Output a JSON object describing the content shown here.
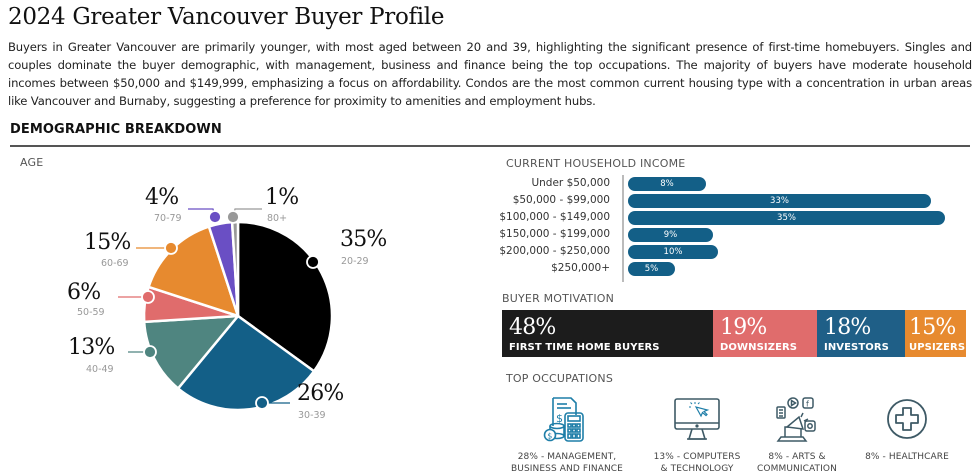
{
  "header": {
    "title": "2024 Greater Vancouver Buyer Profile",
    "intro": "Buyers in Greater Vancouver are primarily younger, with most aged between 20 and 39, highlighting the significant presence of first-time homebuyers. Singles and couples dominate the buyer demographic, with management, business and finance being the top occupations. The majority of buyers have moderate household incomes between $50,000 and $149,999, emphasizing a focus on affordability. Condos are the most common current housing type with a concentration in urban areas like Vancouver and Burnaby, suggesting a preference for proximity to amenities and employment hubs."
  },
  "section": {
    "heading": "DEMOGRAPHIC BREAKDOWN"
  },
  "age": {
    "label": "AGE",
    "slices": [
      {
        "pct": "35%",
        "range": "20-29",
        "color": "#000000"
      },
      {
        "pct": "26%",
        "range": "30-39",
        "color": "#135f87"
      },
      {
        "pct": "13%",
        "range": "40-49",
        "color": "#4f8580"
      },
      {
        "pct": "6%",
        "range": "50-59",
        "color": "#e06c6c"
      },
      {
        "pct": "15%",
        "range": "60-69",
        "color": "#e78a2f"
      },
      {
        "pct": "4%",
        "range": "70-79",
        "color": "#6a4fc4"
      },
      {
        "pct": "1%",
        "range": "80+",
        "color": "#999999"
      }
    ]
  },
  "income": {
    "label": "CURRENT HOUSEHOLD INCOME",
    "rows": [
      {
        "label": "Under $50,000",
        "value": "8%"
      },
      {
        "label": "$50,000 - $99,000",
        "value": "33%"
      },
      {
        "label": "$100,000 - $149,000",
        "value": "35%"
      },
      {
        "label": "$150,000 - $199,000",
        "value": "9%"
      },
      {
        "label": "$200,000 - $250,000",
        "value": "10%"
      },
      {
        "label": "$250,000+",
        "value": "5%"
      }
    ],
    "bar_color": "#135f87"
  },
  "motivation": {
    "label": "BUYER MOTIVATION",
    "segments": [
      {
        "pct": "48%",
        "label": "FIRST TIME HOME BUYERS",
        "color": "#1c1c1c"
      },
      {
        "pct": "19%",
        "label": "DOWNSIZERS",
        "color": "#e06c6c"
      },
      {
        "pct": "18%",
        "label": "INVESTORS",
        "color": "#1f5f87"
      },
      {
        "pct": "15%",
        "label": "UPSIZERS",
        "color": "#e78a2f"
      }
    ]
  },
  "occupations": {
    "label": "TOP OCCUPATIONS",
    "items": [
      {
        "line1": "28% - MANAGEMENT,",
        "line2": "BUSINESS AND FINANCE",
        "icon": "calculator-finance-icon"
      },
      {
        "line1": "13% - COMPUTERS",
        "line2": "& TECHNOLOGY",
        "icon": "computer-monitor-icon"
      },
      {
        "line1": "8% - ARTS &",
        "line2": "COMMUNICATION",
        "icon": "megaphone-media-icon"
      },
      {
        "line1": "8% - HEALTHCARE",
        "line2": "",
        "icon": "medical-cross-icon"
      }
    ]
  },
  "chart_data": [
    {
      "type": "pie",
      "title": "AGE",
      "categories": [
        "20-29",
        "30-39",
        "40-49",
        "50-59",
        "60-69",
        "70-79",
        "80+"
      ],
      "values": [
        35,
        26,
        13,
        6,
        15,
        4,
        1
      ],
      "colors": [
        "#000000",
        "#135f87",
        "#4f8580",
        "#e06c6c",
        "#e78a2f",
        "#6a4fc4",
        "#999999"
      ],
      "start_angle": "12 o'clock, clockwise"
    },
    {
      "type": "bar",
      "orientation": "horizontal",
      "title": "CURRENT HOUSEHOLD INCOME",
      "categories": [
        "Under $50,000",
        "$50,000 - $99,000",
        "$100,000 - $149,000",
        "$150,000 - $199,000",
        "$200,000 - $250,000",
        "$250,000+"
      ],
      "values": [
        8,
        33,
        35,
        9,
        10,
        5
      ],
      "unit": "%",
      "xlabel": "",
      "ylabel": ""
    },
    {
      "type": "bar",
      "orientation": "stacked-horizontal",
      "title": "BUYER MOTIVATION",
      "categories": [
        "FIRST TIME HOME BUYERS",
        "DOWNSIZERS",
        "INVESTORS",
        "UPSIZERS"
      ],
      "values": [
        48,
        19,
        18,
        15
      ],
      "unit": "%"
    },
    {
      "type": "table",
      "title": "TOP OCCUPATIONS",
      "categories": [
        "Management, Business and Finance",
        "Computers & Technology",
        "Arts & Communication",
        "Healthcare"
      ],
      "values": [
        28,
        13,
        8,
        8
      ],
      "unit": "%"
    }
  ]
}
